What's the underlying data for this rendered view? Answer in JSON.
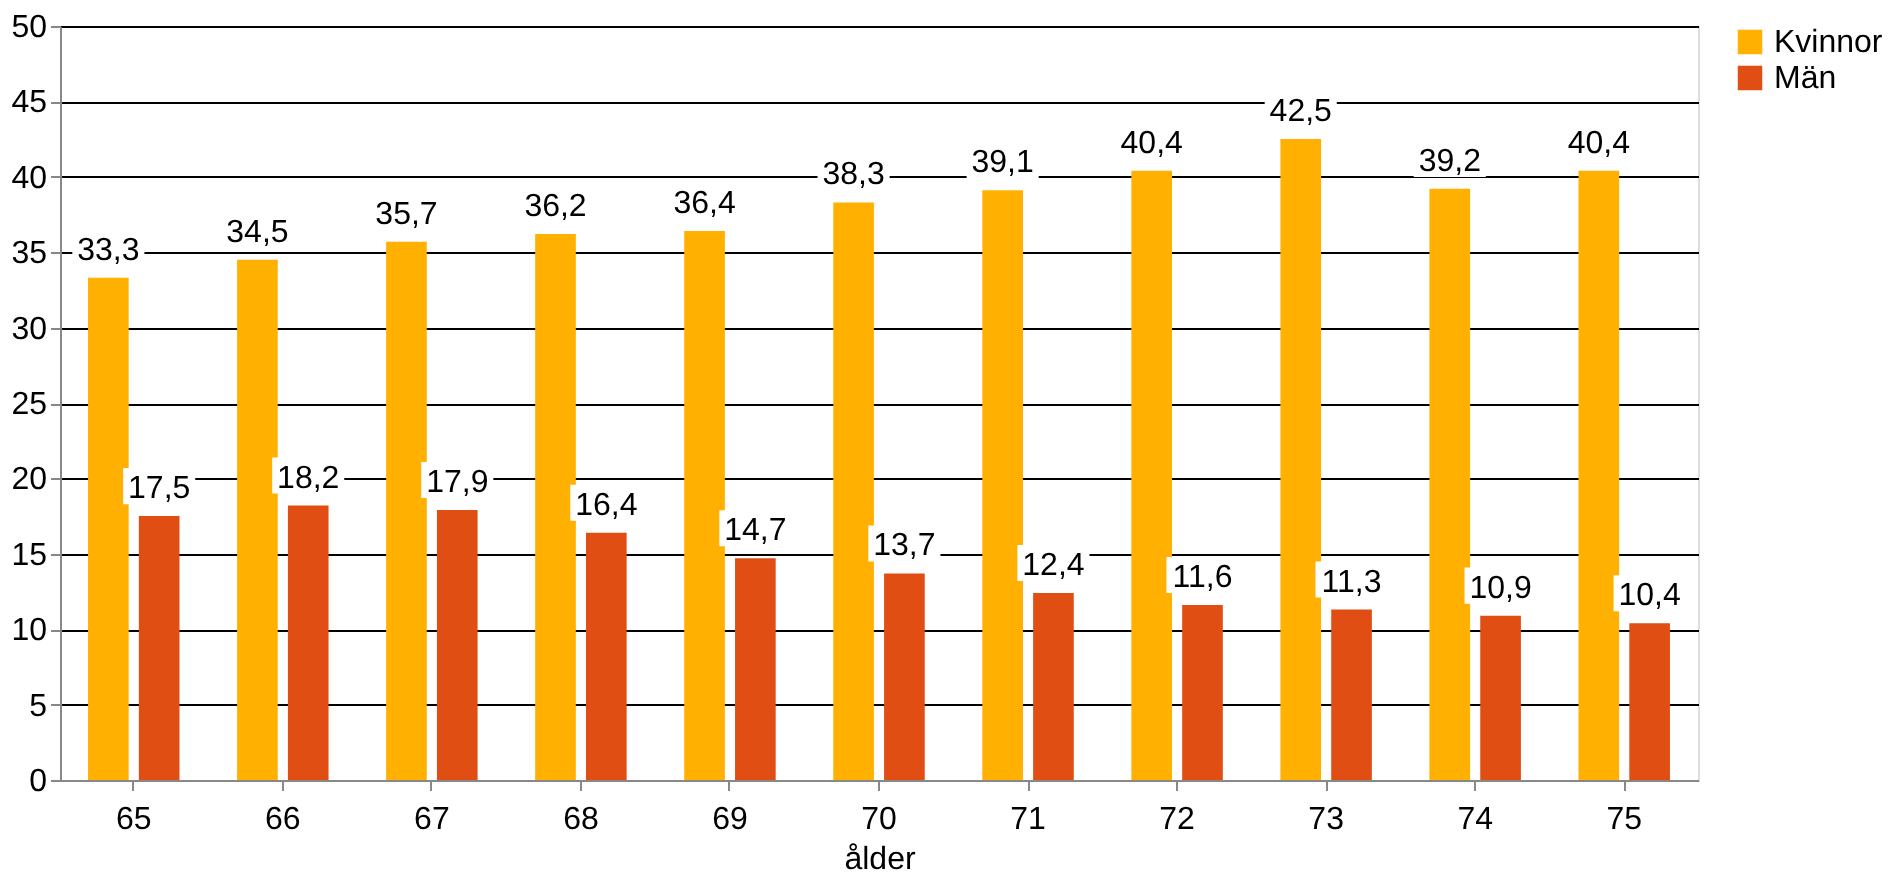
{
  "chart_data": {
    "type": "bar",
    "xlabel": "ålder",
    "categories": [
      "65",
      "66",
      "67",
      "68",
      "69",
      "70",
      "71",
      "72",
      "73",
      "74",
      "75"
    ],
    "series": [
      {
        "name": "Kvinnor",
        "color": "#ffb000",
        "values": [
          33.3,
          34.5,
          35.7,
          36.2,
          36.4,
          38.3,
          39.1,
          40.4,
          42.5,
          39.2,
          40.4
        ],
        "value_labels": [
          "33,3",
          "34,5",
          "35,7",
          "36,2",
          "36,4",
          "38,3",
          "39,1",
          "40,4",
          "42,5",
          "39,2",
          "40,4"
        ]
      },
      {
        "name": "Män",
        "color": "#e04e14",
        "values": [
          17.5,
          18.2,
          17.9,
          16.4,
          14.7,
          13.7,
          12.4,
          11.6,
          11.3,
          10.9,
          10.4
        ],
        "value_labels": [
          "17,5",
          "18,2",
          "17,9",
          "16,4",
          "14,7",
          "13,7",
          "12,4",
          "11,6",
          "11,3",
          "10,9",
          "10,4"
        ]
      }
    ],
    "ylim": [
      0,
      50
    ],
    "yticks": [
      0,
      5,
      10,
      15,
      20,
      25,
      30,
      35,
      40,
      45,
      50
    ],
    "grid": "y",
    "legend": "right"
  }
}
